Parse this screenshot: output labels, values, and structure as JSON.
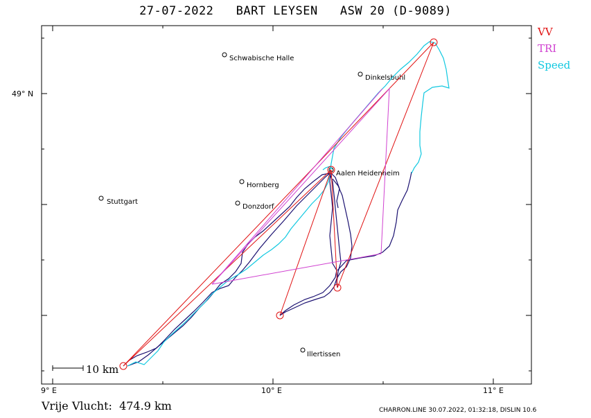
{
  "header": {
    "title": "27-07-2022   BART LEYSEN   ASW 20 (D-9089)"
  },
  "legend": [
    {
      "label": "VV",
      "color": "#e01010"
    },
    {
      "label": "TRI",
      "color": "#d040d0"
    },
    {
      "label": "Speed",
      "color": "#10c8e0"
    }
  ],
  "axes": {
    "x_ticks": [
      "9° E",
      "10° E",
      "11° E"
    ],
    "y_ticks": [
      "49° N"
    ]
  },
  "scale_bar": {
    "label": "10  km"
  },
  "towns": [
    {
      "name": "Schwabische Halle"
    },
    {
      "name": "Dinkelsbuhl"
    },
    {
      "name": "Aalen Heidenheim"
    },
    {
      "name": "Hornberg"
    },
    {
      "name": "Stuttgart"
    },
    {
      "name": "Donzdorf"
    },
    {
      "name": "Illertissen"
    }
  ],
  "footer": {
    "distance": "Vrije Vlucht:  474.9 km",
    "credit": "CHARRON.LINE 30.07.2022, 01:32:18, DISLIN 10.6"
  },
  "colors": {
    "vv": "#e01010",
    "tri": "#d040d0",
    "speed": "#10c8e0",
    "track": "#1a1070"
  }
}
